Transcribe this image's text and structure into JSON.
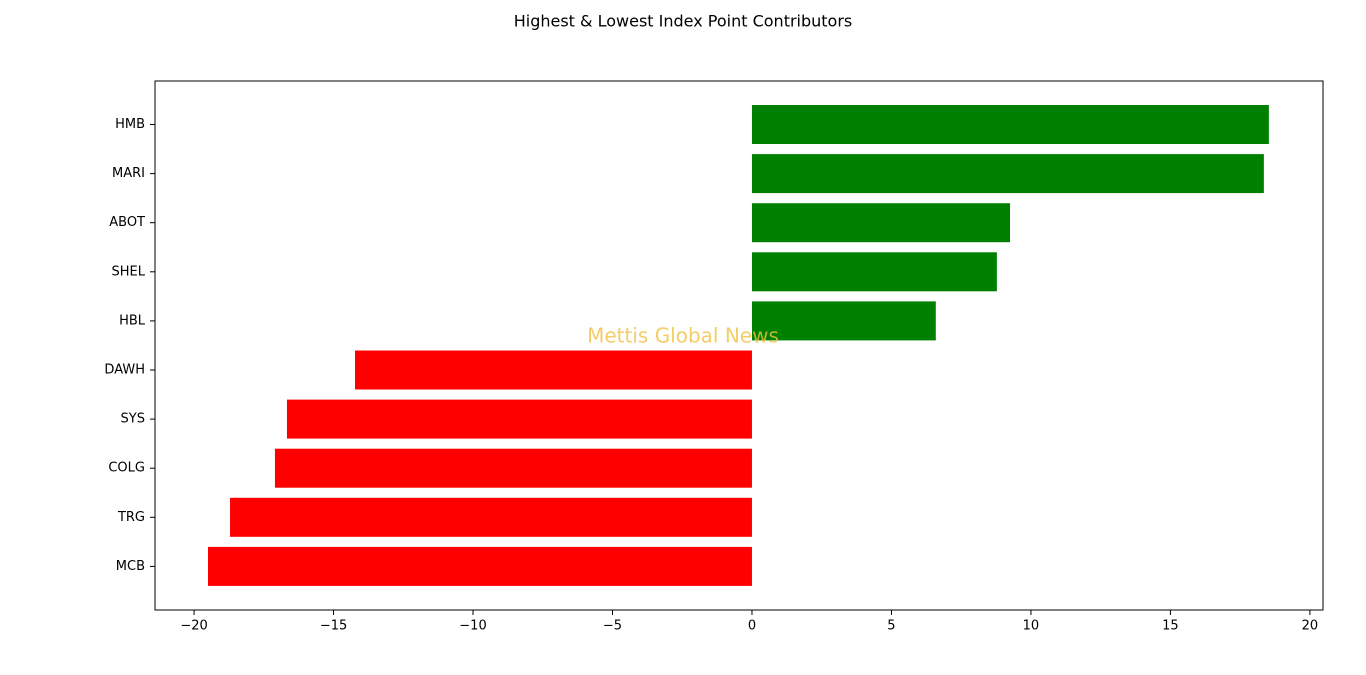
{
  "chart_data": {
    "type": "barh",
    "title": "Highest & Lowest Index Point Contributors",
    "watermark": "Mettis Global News",
    "categories": [
      "HMB",
      "MARI",
      "ABOT",
      "SHEL",
      "HBL",
      "DAWH",
      "SYS",
      "COLG",
      "TRG",
      "MCB"
    ],
    "values": [
      18.53,
      18.35,
      9.25,
      8.78,
      6.59,
      -14.23,
      -16.67,
      -17.1,
      -18.71,
      -19.5
    ],
    "colors": [
      "#008000",
      "#008000",
      "#008000",
      "#008000",
      "#008000",
      "#ff0000",
      "#ff0000",
      "#ff0000",
      "#ff0000",
      "#ff0000"
    ],
    "xlim": [
      -21.4,
      20.47
    ],
    "xticks": [
      {
        "value": -20,
        "label": "−20"
      },
      {
        "value": -15,
        "label": "−15"
      },
      {
        "value": -10,
        "label": "−10"
      },
      {
        "value": -5,
        "label": "−5"
      },
      0,
      5,
      10,
      15,
      20
    ],
    "grid": false
  }
}
